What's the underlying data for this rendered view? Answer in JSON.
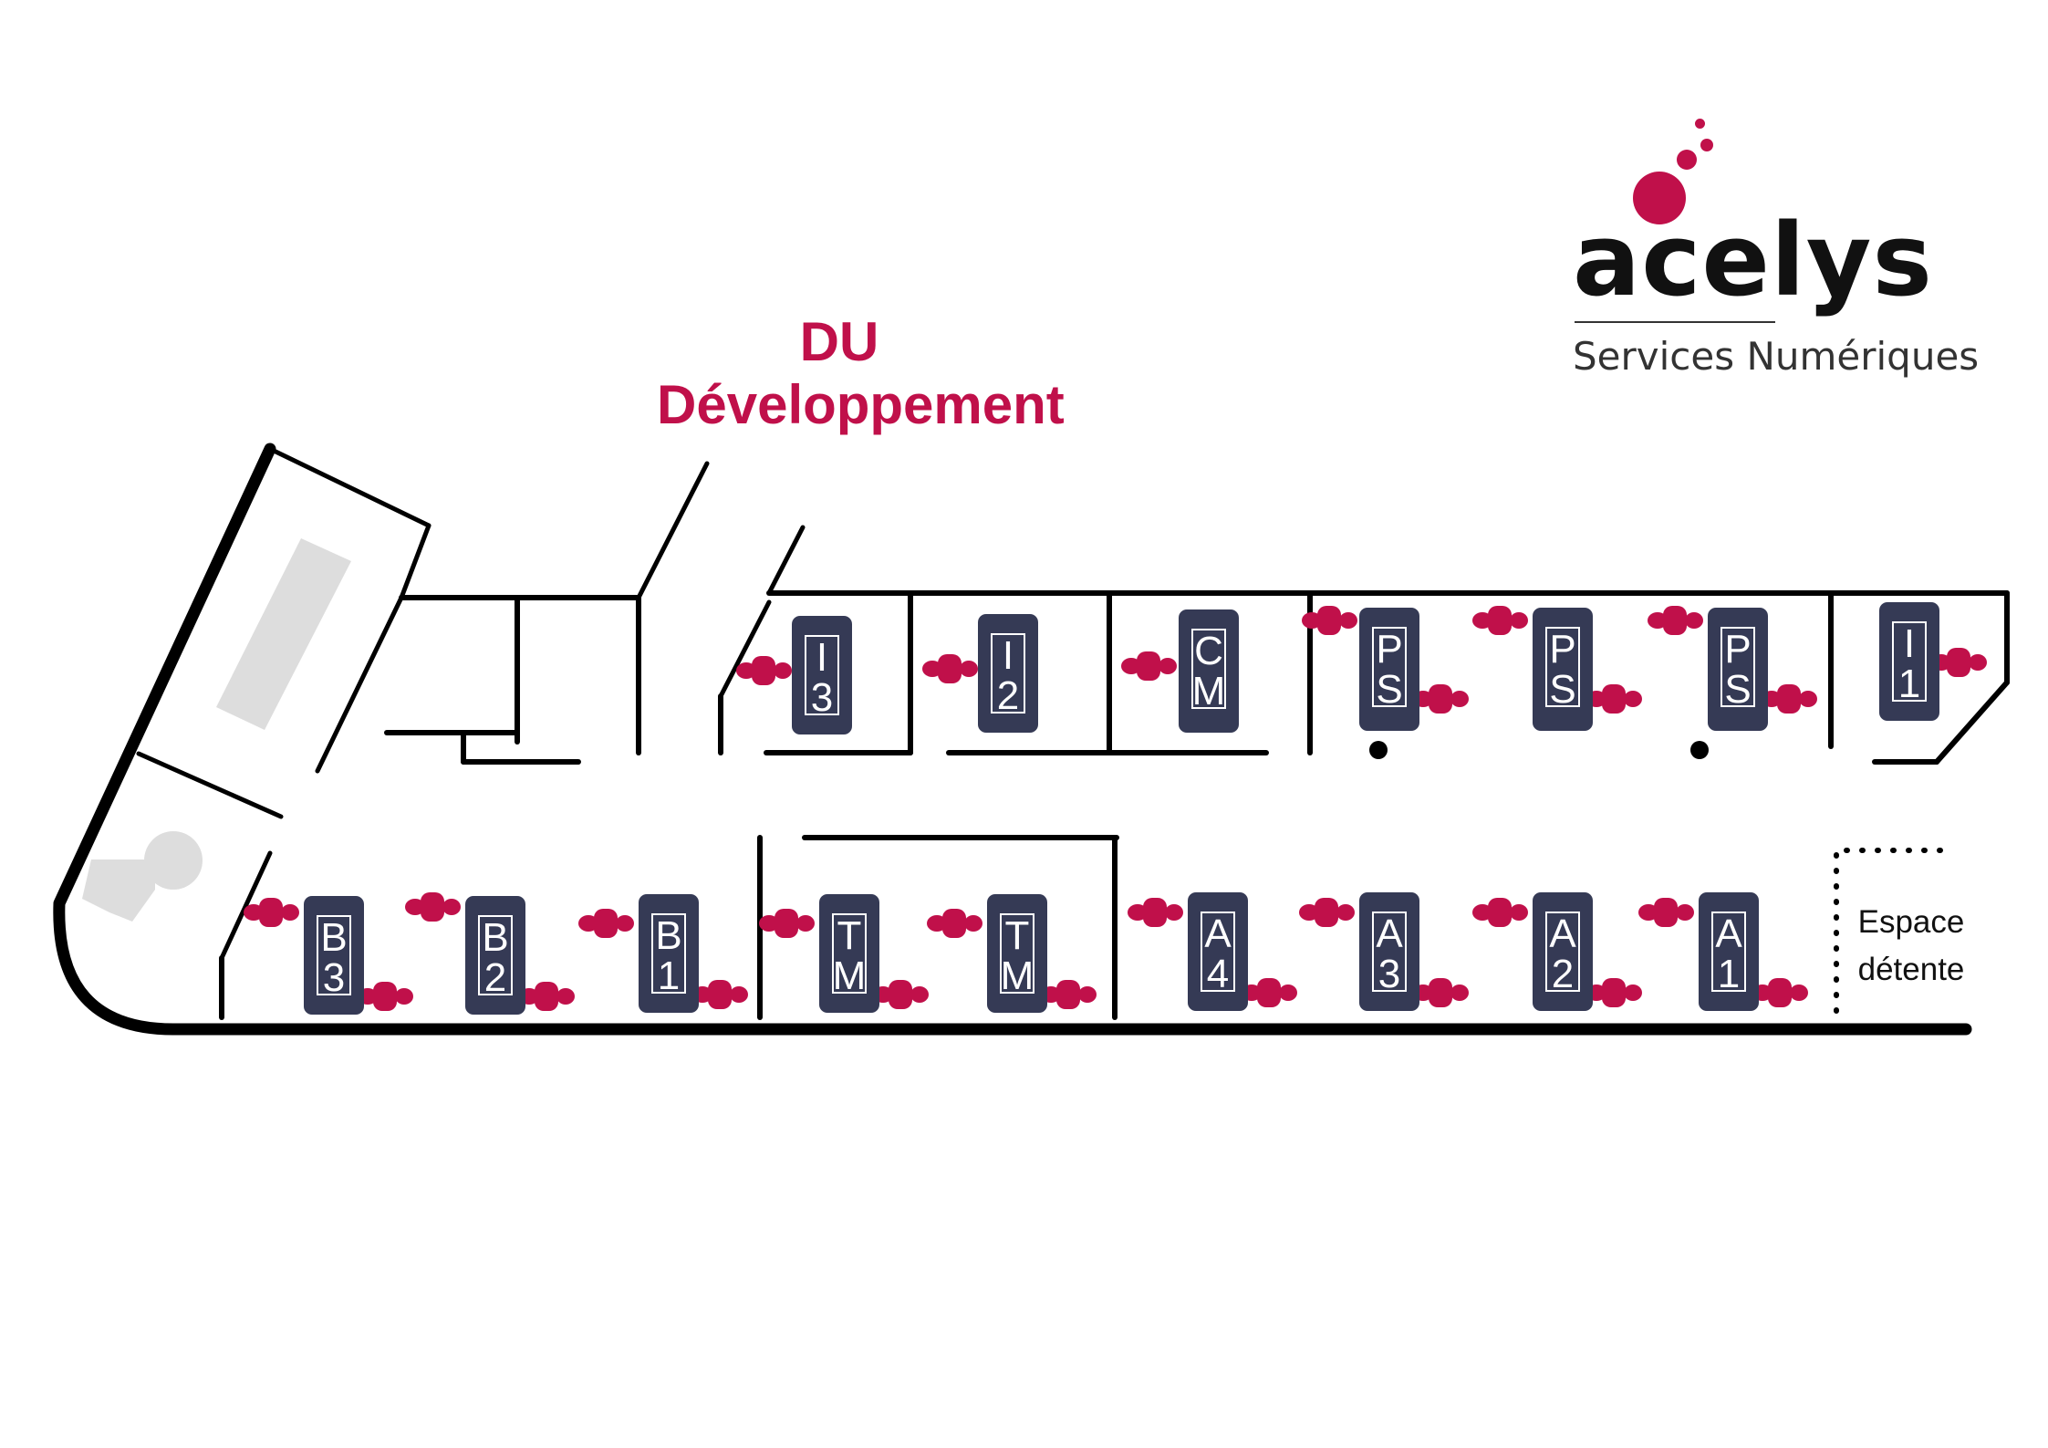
{
  "title": "DU Développement",
  "logo": {
    "name": "acelys",
    "tagline": "Services Numériques"
  },
  "colors": {
    "accent": "#c0104a",
    "desk": "#353a55",
    "wall": "#000000",
    "fixture": "#dddddd"
  },
  "lounge": {
    "line1": "Espace",
    "line2": "détente"
  },
  "desks": [
    {
      "id": "I3",
      "line1": "I",
      "line2": "3"
    },
    {
      "id": "I2",
      "line1": "I",
      "line2": "2"
    },
    {
      "id": "CM",
      "line1": "C",
      "line2": "M"
    },
    {
      "id": "PS-1",
      "line1": "P",
      "line2": "S"
    },
    {
      "id": "PS-2",
      "line1": "P",
      "line2": "S"
    },
    {
      "id": "PS-3",
      "line1": "P",
      "line2": "S"
    },
    {
      "id": "I1",
      "line1": "I",
      "line2": "1"
    },
    {
      "id": "B3",
      "line1": "B",
      "line2": "3"
    },
    {
      "id": "B2",
      "line1": "B",
      "line2": "2"
    },
    {
      "id": "B1",
      "line1": "B",
      "line2": "1"
    },
    {
      "id": "TM-1",
      "line1": "T",
      "line2": "M"
    },
    {
      "id": "TM-2",
      "line1": "T",
      "line2": "M"
    },
    {
      "id": "A4",
      "line1": "A",
      "line2": "4"
    },
    {
      "id": "A3",
      "line1": "A",
      "line2": "3"
    },
    {
      "id": "A2",
      "line1": "A",
      "line2": "2"
    },
    {
      "id": "A1",
      "line1": "A",
      "line2": "1"
    }
  ]
}
